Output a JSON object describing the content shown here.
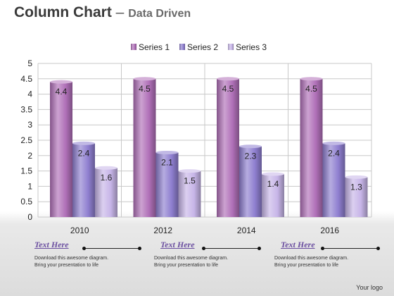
{
  "header": {
    "title_main": "Column Chart",
    "title_dash": "–",
    "title_sub": "Data Driven"
  },
  "chart_data": {
    "type": "bar",
    "categories": [
      "2010",
      "2012",
      "2014",
      "2016"
    ],
    "series": [
      {
        "name": "Series 1",
        "values": [
          4.4,
          4.5,
          4.5,
          4.5
        ],
        "color": "#b070b8"
      },
      {
        "name": "Series 2",
        "values": [
          2.4,
          2.1,
          2.3,
          2.4
        ],
        "color": "#8f7fd0"
      },
      {
        "name": "Series 3",
        "values": [
          1.6,
          1.5,
          1.4,
          1.3
        ],
        "color": "#c7b5e8"
      }
    ],
    "ylim": [
      0,
      5
    ],
    "yticks": [
      "0",
      "0.5",
      "1",
      "1.5",
      "2",
      "2.5",
      "3",
      "3.5",
      "4",
      "4.5",
      "5"
    ],
    "grid": true,
    "legend": "top-center",
    "data_labels": true
  },
  "captions": [
    {
      "heading": "Text Here",
      "line1": "Download this awesome diagram.",
      "line2": "Bring your presentation to life"
    },
    {
      "heading": "Text Here",
      "line1": "Download this awesome diagram.",
      "line2": "Bring your presentation to life"
    },
    {
      "heading": "Text Here",
      "line1": "Download this awesome diagram.",
      "line2": "Bring your presentation to life"
    }
  ],
  "footer": {
    "logo_text": "Your logo"
  }
}
